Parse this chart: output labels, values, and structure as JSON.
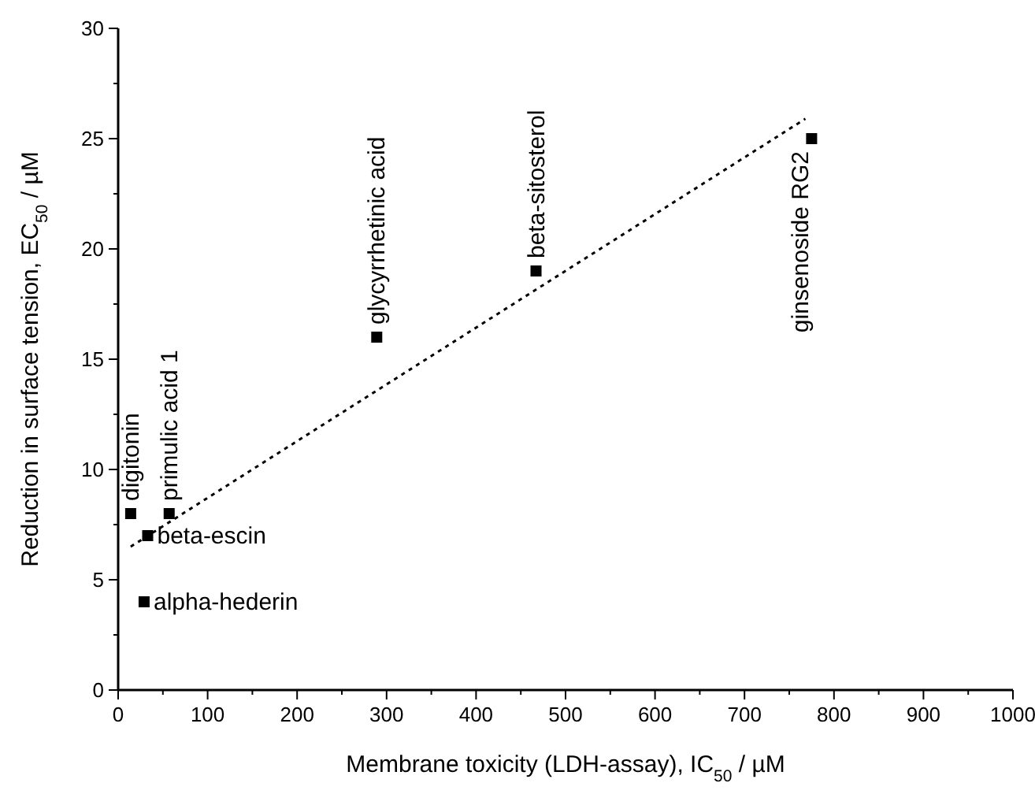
{
  "chart_data": {
    "type": "scatter",
    "xlabel": "Membrane toxicity (LDH-assay), IC$_{50}$ / µM",
    "ylabel": "Reduction in surface tension, EC$_{50}$ / µM",
    "xlim": [
      0,
      1000
    ],
    "ylim": [
      0,
      30
    ],
    "xticks": [
      0,
      {
        "value": 50,
        "label": null
      },
      100,
      {
        "value": 150,
        "label": null
      },
      200,
      {
        "value": 250,
        "label": null
      },
      300,
      {
        "value": 350,
        "label": null
      },
      400,
      {
        "value": 450,
        "label": null
      },
      500,
      {
        "value": 550,
        "label": null
      },
      600,
      {
        "value": 650,
        "label": null
      },
      700,
      {
        "value": 750,
        "label": null
      },
      800,
      {
        "value": 850,
        "label": null
      },
      900,
      {
        "value": 950,
        "label": null
      },
      1000
    ],
    "yticks": [
      0,
      {
        "value": 2.5,
        "label": null
      },
      5,
      {
        "value": 7.5,
        "label": null
      },
      10,
      {
        "value": 12.5,
        "label": null
      },
      15,
      {
        "value": 17.5,
        "label": null
      },
      20,
      {
        "value": 22.5,
        "label": null
      },
      25,
      {
        "value": 27.5,
        "label": null
      },
      30
    ],
    "marker": "square",
    "grid": false,
    "series": [
      {
        "color": "#000000",
        "x": [
          14,
          57,
          33,
          29,
          289,
          467,
          775
        ],
        "values": [
          8,
          8,
          7,
          4,
          16,
          19,
          25
        ]
      },
      {
        "type": "line",
        "color": "#000000",
        "line_style": "dotted",
        "marker": "none",
        "x": [
          14,
          768
        ],
        "values": [
          6.5,
          25.9
        ]
      }
    ],
    "annotations": [
      {
        "text": "digitonin",
        "x": 14,
        "y": 8
      },
      {
        "text": "primulic acid 1",
        "x": 57,
        "y": 8
      },
      {
        "text": "beta-escin",
        "x": 33,
        "y": 7
      },
      {
        "text": "alpha-hederin",
        "x": 29,
        "y": 4
      },
      {
        "text": "glycyrrhetinic acid",
        "x": 289,
        "y": 16
      },
      {
        "text": "beta-sitosterol",
        "x": 467,
        "y": 19
      },
      {
        "text": "ginsenoside RG2",
        "x": 775,
        "y": 25
      }
    ]
  }
}
